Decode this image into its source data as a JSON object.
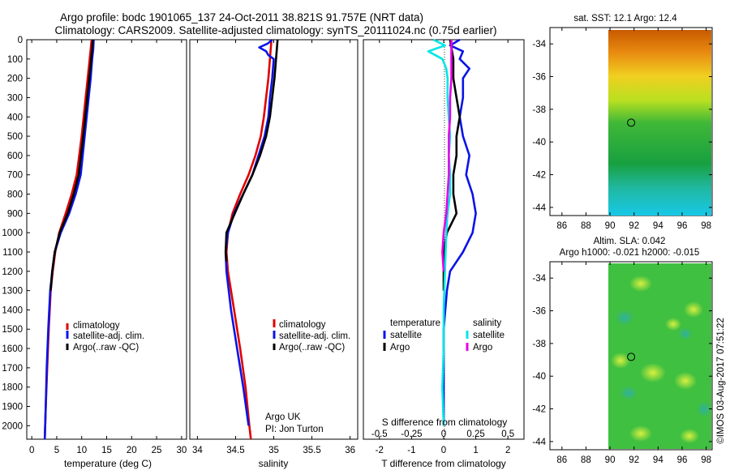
{
  "title_line1": "Argo profile: bodc 1901065_137 24-Oct-2011 38.821S 91.757E (NRT data)",
  "title_line2": "Climatology: CARS2009. Satellite-adjusted climatology: synTS_20111024.nc (0.75d earlier)",
  "footer_credit": "©IMOS 03-Aug-2017 07:51:22",
  "colors": {
    "climatology": "#e00000",
    "satellite": "#0a14e6",
    "argo": "#000000",
    "sat_salinity": "#00e6e6",
    "argo_salinity": "#e600e6"
  },
  "chart_data": [
    {
      "type": "line",
      "name": "temperature-profile",
      "xlabel": "temperature (deg C)",
      "ylabel": "",
      "xlim": [
        -1,
        31
      ],
      "ylim": [
        2070,
        0
      ],
      "xticks": [
        0,
        5,
        10,
        15,
        20,
        25,
        30
      ],
      "yticks": [
        0,
        100,
        200,
        300,
        400,
        500,
        600,
        700,
        800,
        900,
        1000,
        1100,
        1200,
        1300,
        1400,
        1500,
        1600,
        1700,
        1800,
        1900,
        2000
      ],
      "legend": [
        "climatology",
        "satellite-adj. clim.",
        "Argo(..raw -QC)"
      ],
      "series": [
        {
          "name": "climatology",
          "color": "#e00000",
          "depth": [
            0,
            50,
            100,
            200,
            300,
            500,
            700,
            800,
            900,
            1000,
            1100,
            1200,
            1300,
            1500,
            1700,
            1900,
            2070
          ],
          "values": [
            12.0,
            11.8,
            11.6,
            11.2,
            10.8,
            10.0,
            9.0,
            8.0,
            6.8,
            5.5,
            4.7,
            4.2,
            3.8,
            3.4,
            3.1,
            2.8,
            2.6
          ]
        },
        {
          "name": "satellite-adj. clim.",
          "color": "#0a14e6",
          "depth": [
            0,
            50,
            100,
            200,
            300,
            500,
            700,
            800,
            900,
            1000,
            1100,
            1200,
            1300,
            1500,
            1700,
            1900,
            2070
          ],
          "values": [
            12.4,
            12.3,
            12.1,
            11.8,
            11.4,
            10.6,
            9.8,
            8.8,
            7.5,
            5.8,
            4.6,
            4.1,
            3.7,
            3.3,
            3.0,
            2.8,
            2.6
          ]
        },
        {
          "name": "Argo(..raw -QC)",
          "color": "#000000",
          "depth": [
            0,
            50,
            100,
            200,
            300,
            500,
            700,
            800,
            900,
            1000,
            1100,
            1200,
            1300
          ],
          "values": [
            12.2,
            12.1,
            11.9,
            11.5,
            11.1,
            10.3,
            9.4,
            8.4,
            7.2,
            5.6,
            4.6,
            4.1,
            3.8
          ]
        }
      ],
      "annotations": []
    },
    {
      "type": "line",
      "name": "salinity-profile",
      "xlabel": "salinity",
      "ylabel": "",
      "xlim": [
        33.9,
        36.1
      ],
      "ylim": [
        2070,
        0
      ],
      "xticks": [
        34,
        34.5,
        35,
        35.5,
        36
      ],
      "legend": [
        "climatology",
        "satellite-adj. clim.",
        "Argo(..raw -QC)"
      ],
      "series": [
        {
          "name": "climatology",
          "color": "#e00000",
          "depth": [
            0,
            50,
            100,
            200,
            300,
            400,
            500,
            600,
            700,
            800,
            900,
            1000,
            1100,
            1200,
            1400,
            1600,
            1800,
            2000,
            2070
          ],
          "values": [
            34.97,
            34.96,
            34.95,
            34.93,
            34.9,
            34.87,
            34.83,
            34.76,
            34.67,
            34.56,
            34.46,
            34.4,
            34.38,
            34.4,
            34.48,
            34.56,
            34.63,
            34.68,
            34.7
          ]
        },
        {
          "name": "satellite-adj. clim.",
          "color": "#0a14e6",
          "depth": [
            0,
            20,
            40,
            60,
            80,
            100,
            200,
            300,
            400,
            500,
            600,
            700,
            800,
            900,
            1000,
            1100,
            1200,
            1400,
            1600,
            1800,
            2000
          ],
          "values": [
            34.98,
            34.92,
            34.81,
            34.9,
            34.93,
            35.0,
            34.98,
            34.95,
            34.93,
            34.88,
            34.8,
            34.72,
            34.6,
            34.48,
            34.4,
            34.37,
            34.38,
            34.44,
            34.52,
            34.6,
            34.67
          ]
        },
        {
          "name": "Argo(..raw -QC)",
          "color": "#000000",
          "depth": [
            0,
            50,
            100,
            200,
            300,
            400,
            500,
            600,
            700,
            800,
            900,
            1000,
            1100,
            1150
          ],
          "values": [
            35.05,
            35.04,
            35.03,
            35.01,
            34.98,
            34.95,
            34.9,
            34.82,
            34.72,
            34.6,
            34.49,
            34.38,
            34.37,
            34.38
          ]
        }
      ],
      "annotations": [
        "Argo UK",
        "PI: Jon Turton"
      ]
    },
    {
      "type": "line",
      "name": "difference-profile",
      "xlabel": "T difference from climatology",
      "xlabel_top": "S difference from climatology",
      "xlim": [
        -2.5,
        2.5
      ],
      "ylim": [
        2070,
        0
      ],
      "xticks": [
        -2,
        -1,
        0,
        1,
        2
      ],
      "s_ticks": [
        "-0.5",
        "-0.25",
        "0",
        "0.25",
        "0.5"
      ],
      "legend_titles": [
        "temperature",
        "salinity"
      ],
      "legend": [
        "satellite",
        "Argo",
        "satellite",
        "Argo"
      ],
      "series": [
        {
          "name": "T satellite",
          "color": "#0a14e6",
          "depth": [
            0,
            30,
            60,
            100,
            150,
            200,
            300,
            400,
            500,
            600,
            700,
            800,
            900,
            1000,
            1100,
            1200,
            1300,
            1500,
            1700,
            2000
          ],
          "values": [
            0.5,
            0.2,
            0.6,
            0.5,
            0.8,
            0.6,
            0.6,
            0.5,
            0.6,
            0.8,
            0.7,
            0.9,
            1.0,
            0.9,
            0.6,
            0.2,
            0.1,
            0.0,
            0.0,
            0.0
          ]
        },
        {
          "name": "T Argo",
          "color": "#000000",
          "depth": [
            0,
            100,
            200,
            300,
            400,
            500,
            600,
            700,
            800,
            900,
            1000,
            1100,
            1200,
            1300
          ],
          "values": [
            0.2,
            0.3,
            0.3,
            0.4,
            0.5,
            0.4,
            0.4,
            0.3,
            0.3,
            0.4,
            0.1,
            0.0,
            0.0,
            0.0
          ]
        },
        {
          "name": "S satellite",
          "color": "#00e6e6",
          "depth": [
            0,
            30,
            60,
            100,
            150,
            200,
            300,
            400,
            500,
            600,
            700,
            800,
            900,
            1000,
            1200,
            1400,
            1600,
            1800,
            2000
          ],
          "values": [
            -0.08,
            0.01,
            -0.12,
            -0.01,
            0.02,
            0.03,
            0.03,
            0.04,
            0.05,
            0.04,
            0.05,
            0.05,
            0.03,
            0.02,
            0.01,
            0.0,
            0.0,
            -0.01,
            0.0
          ]
        },
        {
          "name": "S Argo",
          "color": "#e600e6",
          "depth": [
            0,
            100,
            200,
            300,
            400,
            500,
            600,
            700,
            800,
            900,
            1000,
            1100,
            1200
          ],
          "values": [
            0.06,
            0.06,
            0.06,
            0.05,
            0.05,
            0.04,
            0.04,
            0.04,
            0.03,
            0.02,
            0.0,
            -0.01,
            0.0
          ]
        }
      ]
    },
    {
      "type": "heatmap",
      "name": "sst-map",
      "title": "sat. SST: 12.1  Argo: 12.4",
      "xlim": [
        85,
        98.5
      ],
      "ylim": [
        -44.5,
        -33
      ],
      "xticks": [
        86,
        88,
        90,
        92,
        94,
        96,
        98
      ],
      "yticks": [
        -34,
        -36,
        -38,
        -40,
        -42,
        -44
      ],
      "marker": {
        "lon": 91.757,
        "lat": -38.821
      }
    },
    {
      "type": "heatmap",
      "name": "sla-map",
      "title_line1": "Altim. SLA: 0.042",
      "title_line2": "Argo h1000: -0.021 h2000: -0.015",
      "xlim": [
        85,
        98.5
      ],
      "ylim": [
        -44.5,
        -33
      ],
      "xticks": [
        86,
        88,
        90,
        92,
        94,
        96,
        98
      ],
      "yticks": [
        -34,
        -36,
        -38,
        -40,
        -42,
        -44
      ],
      "marker": {
        "lon": 91.757,
        "lat": -38.821
      }
    }
  ]
}
